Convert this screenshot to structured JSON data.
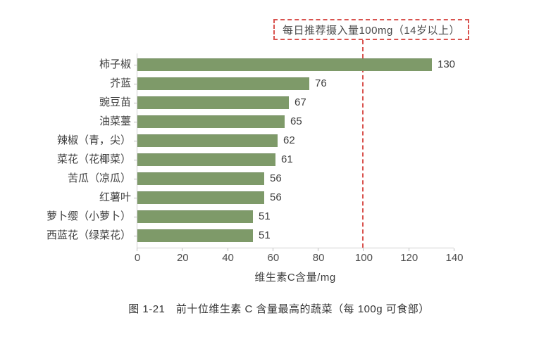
{
  "annotation": {
    "text": "每日推荐摄入量100mg（14岁以上）"
  },
  "chart_data": {
    "type": "bar",
    "orientation": "horizontal",
    "title": "",
    "categories": [
      "柿子椒",
      "芥蓝",
      "豌豆苗",
      "油菜薹",
      "辣椒（青，尖）",
      "菜花（花椰菜）",
      "苦瓜（凉瓜）",
      "红薯叶",
      "萝卜缨（小萝卜）",
      "西蓝花（绿菜花）"
    ],
    "values": [
      130,
      76,
      67,
      65,
      62,
      61,
      56,
      56,
      51,
      51
    ],
    "xlabel": "维生素C含量/mg",
    "xticks": [
      0,
      20,
      40,
      60,
      80,
      100,
      120,
      140
    ],
    "xlim": [
      0,
      140
    ],
    "grid": false,
    "legend": "none",
    "value_labels": true,
    "bar_color": "#7e9a69",
    "reference_line": {
      "x": 100,
      "style": "dashed",
      "color": "#d9534f",
      "label": "每日推荐摄入量100mg（14岁以上）"
    }
  },
  "caption": "图 1-21　前十位维生素 C 含量最高的蔬菜（每 100g 可食部）"
}
